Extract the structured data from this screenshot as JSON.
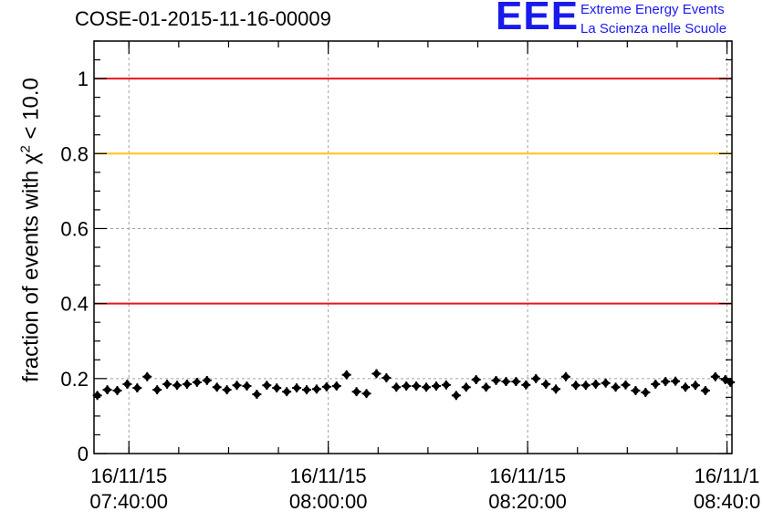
{
  "chart_data": {
    "type": "scatter",
    "title": "COSE-01-2015-11-16-00009",
    "ylabel": {
      "pre": "fraction of events with ",
      "sym": "χ",
      "sup": "2",
      "post": " < 10.0"
    },
    "xlabel": "",
    "ylim": [
      0,
      1.1
    ],
    "xlim": [
      "07:36:30",
      "08:40:30"
    ],
    "grid": true,
    "y_ticks": [
      0,
      0.2,
      0.4,
      0.6,
      0.8,
      1
    ],
    "y_tick_labels": [
      "0",
      "0.2",
      "0.4",
      "0.6",
      "0.8",
      "1"
    ],
    "x_ticks": [
      {
        "time": "07:40:00",
        "date": "16/11/15",
        "time_label": "07:40:00"
      },
      {
        "time": "08:00:00",
        "date": "16/11/15",
        "time_label": "08:00:00"
      },
      {
        "time": "08:20:00",
        "date": "16/11/15",
        "time_label": "08:20:00"
      },
      {
        "time": "08:40:00",
        "date": "16/11/1",
        "time_label": "08:40:0"
      }
    ],
    "reference_lines": [
      {
        "y": 1.0,
        "color": "#e8141c"
      },
      {
        "y": 0.8,
        "color": "#ffc31a"
      },
      {
        "y": 0.4,
        "color": "#e8141c"
      }
    ],
    "series": [
      {
        "marker": "filled-diamond-with-error-bars",
        "color": "#000000",
        "x": [
          "07:36:50",
          "07:37:50",
          "07:38:50",
          "07:39:50",
          "07:40:50",
          "07:41:50",
          "07:42:50",
          "07:43:50",
          "07:44:50",
          "07:45:50",
          "07:46:50",
          "07:47:50",
          "07:48:50",
          "07:49:50",
          "07:50:50",
          "07:51:50",
          "07:52:50",
          "07:53:50",
          "07:54:50",
          "07:55:50",
          "07:56:50",
          "07:57:50",
          "07:58:50",
          "07:59:50",
          "08:00:50",
          "08:01:50",
          "08:02:50",
          "08:03:50",
          "08:04:50",
          "08:05:50",
          "08:06:50",
          "08:07:50",
          "08:08:50",
          "08:09:50",
          "08:10:50",
          "08:11:50",
          "08:12:50",
          "08:13:50",
          "08:14:50",
          "08:15:50",
          "08:16:50",
          "08:17:50",
          "08:18:50",
          "08:19:50",
          "08:20:50",
          "08:21:50",
          "08:22:50",
          "08:23:50",
          "08:24:50",
          "08:25:50",
          "08:26:50",
          "08:27:50",
          "08:28:50",
          "08:29:50",
          "08:30:50",
          "08:31:50",
          "08:32:50",
          "08:33:50",
          "08:34:50",
          "08:35:50",
          "08:36:50",
          "08:37:50",
          "08:38:50",
          "08:39:50",
          "08:40:20"
        ],
        "y": [
          0.155,
          0.17,
          0.168,
          0.185,
          0.175,
          0.205,
          0.17,
          0.185,
          0.182,
          0.185,
          0.19,
          0.195,
          0.177,
          0.17,
          0.182,
          0.18,
          0.158,
          0.182,
          0.175,
          0.165,
          0.175,
          0.17,
          0.172,
          0.178,
          0.18,
          0.21,
          0.165,
          0.16,
          0.213,
          0.202,
          0.177,
          0.18,
          0.18,
          0.177,
          0.18,
          0.183,
          0.155,
          0.177,
          0.197,
          0.177,
          0.195,
          0.192,
          0.192,
          0.183,
          0.2,
          0.185,
          0.172,
          0.205,
          0.182,
          0.182,
          0.185,
          0.188,
          0.177,
          0.183,
          0.168,
          0.163,
          0.185,
          0.192,
          0.193,
          0.177,
          0.182,
          0.168,
          0.205,
          0.197,
          0.19
        ],
        "yerr": 0.012
      }
    ]
  },
  "logo": {
    "mark": "EEE",
    "line1": "Extreme Energy Events",
    "line2": "La Scienza nelle Scuole"
  }
}
